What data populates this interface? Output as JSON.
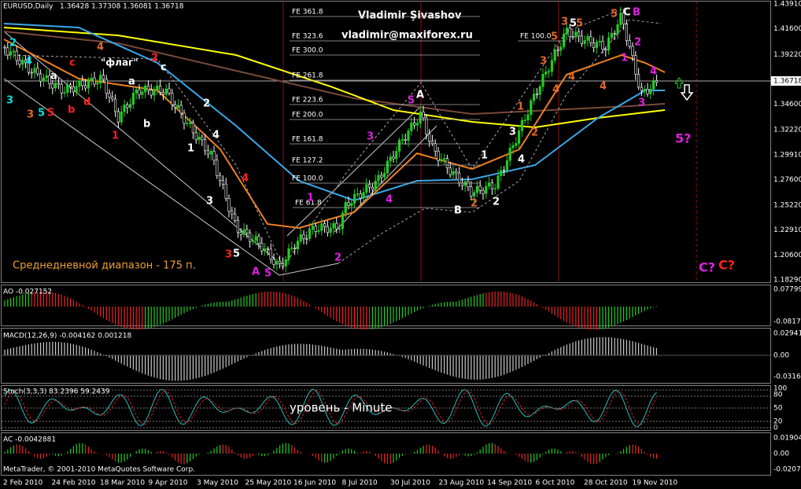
{
  "header": {
    "symbol": "EURUSD,Daily",
    "ohlc": "1.36428 1.37308 1.36081 1.36718"
  },
  "author": {
    "name": "Vladimir Șivashov",
    "email": "vladimir@maxiforex.ru"
  },
  "price_axis": {
    "labels": [
      "1.43910",
      "1.41600",
      "1.39220",
      "1.34600",
      "1.32220",
      "1.29910",
      "1.27600",
      "1.25220",
      "1.22910",
      "1.20600",
      "1.18290"
    ],
    "current": "1.36718"
  },
  "dates": [
    "2 Feb 2010",
    "24 Feb 2010",
    "18 Mar 2010",
    "9 Apr 2010",
    "3 May 2010",
    "25 May 2010",
    "16 Jun 2010",
    "8 Jul 2010",
    "30 Jul 2010",
    "23 Aug 2010",
    "14 Sep 2010",
    "6 Oct 2010",
    "28 Oct 2010",
    "19 Nov 2010"
  ],
  "fe_levels": [
    "FE 361.8",
    "FE 323.6",
    "FE 300.0",
    "FE 261.8",
    "FE 223.6",
    "FE 200.0",
    "FE 161.8",
    "FE 127.2",
    "FE 100.0",
    "FE 61.8",
    "FE 100.0"
  ],
  "annotations": {
    "range": "Среднедневной диапазон - 175 п.",
    "flag": "\"флаг\"",
    "level": "уровень - Minute"
  },
  "wave_labels": [
    "2",
    "4",
    "3",
    "3",
    "5",
    "5",
    "b",
    "d",
    "c",
    "4",
    "a",
    "2",
    "c",
    "a",
    "b",
    "1",
    "2",
    "4",
    "1",
    "4",
    "3",
    "3",
    "5",
    "A",
    "5",
    "1",
    "2",
    "3",
    "4",
    "5",
    "A",
    "B",
    "2",
    "2",
    "1",
    "1",
    "3",
    "4",
    "2",
    "3",
    "4",
    "3",
    "5",
    "5",
    "5",
    "4",
    "5",
    "C",
    "B",
    "2",
    "1",
    "4",
    "4",
    "3",
    "5?",
    "C?",
    "C?"
  ],
  "indicators": {
    "ao": {
      "title": "AO -0.027152",
      "scale": [
        "0.077999",
        "-0.08172"
      ]
    },
    "macd": {
      "title": "MACD(12,26,9) -0.004162 0.001218",
      "scale": [
        "0.029412",
        "0.00",
        "-0.03161"
      ]
    },
    "stoch": {
      "title": "Stoch(3,3,3) 83.2396 59.2439",
      "scale": [
        "100",
        "80",
        "50",
        "20",
        "0"
      ]
    },
    "ac": {
      "title": "AC -0.0042881",
      "scale": [
        "0.019040",
        "0.00",
        "-0.02071"
      ]
    }
  },
  "footer": "MetaTrader, © 2001-2010 MetaQuotes Software Corp."
}
